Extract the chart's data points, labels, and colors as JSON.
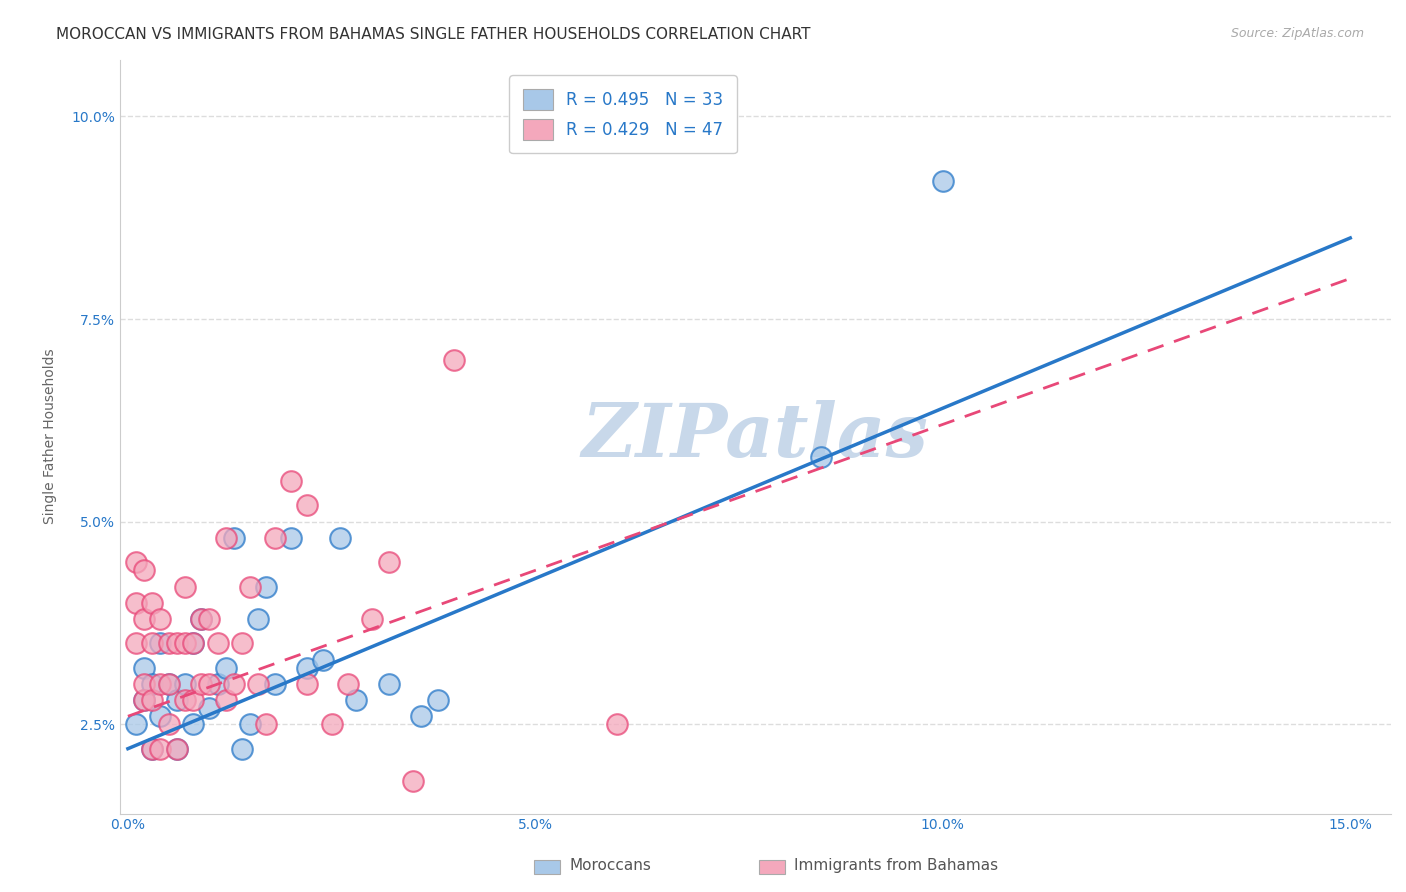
{
  "title": "MOROCCAN VS IMMIGRANTS FROM BAHAMAS SINGLE FATHER HOUSEHOLDS CORRELATION CHART",
  "source": "Source: ZipAtlas.com",
  "xlabel_ticks": [
    "0.0%",
    "5.0%",
    "10.0%",
    "15.0%"
  ],
  "xlabel_tick_vals": [
    0.0,
    0.05,
    0.1,
    0.15
  ],
  "ylabel_ticks": [
    "2.5%",
    "5.0%",
    "7.5%",
    "10.0%"
  ],
  "ylabel_tick_vals": [
    0.025,
    0.05,
    0.075,
    0.1
  ],
  "xlim": [
    -0.001,
    0.155
  ],
  "ylim": [
    0.014,
    0.107
  ],
  "ylabel": "Single Father Households",
  "legend_label1": "Moroccans",
  "legend_label2": "Immigrants from Bahamas",
  "r1": 0.495,
  "n1": 33,
  "r2": 0.429,
  "n2": 47,
  "color1": "#a8c8e8",
  "color2": "#f4a8bc",
  "line_color1": "#2878c8",
  "line_color2": "#e84878",
  "scatter1_x": [
    0.001,
    0.002,
    0.002,
    0.003,
    0.003,
    0.004,
    0.004,
    0.005,
    0.006,
    0.006,
    0.007,
    0.008,
    0.008,
    0.009,
    0.01,
    0.011,
    0.012,
    0.013,
    0.014,
    0.015,
    0.016,
    0.017,
    0.018,
    0.02,
    0.022,
    0.024,
    0.026,
    0.028,
    0.032,
    0.036,
    0.038,
    0.085,
    0.1
  ],
  "scatter1_y": [
    0.025,
    0.028,
    0.032,
    0.022,
    0.03,
    0.035,
    0.026,
    0.03,
    0.022,
    0.028,
    0.03,
    0.035,
    0.025,
    0.038,
    0.027,
    0.03,
    0.032,
    0.048,
    0.022,
    0.025,
    0.038,
    0.042,
    0.03,
    0.048,
    0.032,
    0.033,
    0.048,
    0.028,
    0.03,
    0.026,
    0.028,
    0.058,
    0.092
  ],
  "scatter2_x": [
    0.001,
    0.001,
    0.001,
    0.002,
    0.002,
    0.002,
    0.002,
    0.003,
    0.003,
    0.003,
    0.003,
    0.004,
    0.004,
    0.004,
    0.005,
    0.005,
    0.005,
    0.006,
    0.006,
    0.007,
    0.007,
    0.007,
    0.008,
    0.008,
    0.009,
    0.009,
    0.01,
    0.01,
    0.011,
    0.012,
    0.012,
    0.013,
    0.014,
    0.015,
    0.016,
    0.017,
    0.018,
    0.02,
    0.022,
    0.022,
    0.025,
    0.027,
    0.03,
    0.032,
    0.035,
    0.04,
    0.06
  ],
  "scatter2_y": [
    0.04,
    0.045,
    0.035,
    0.028,
    0.038,
    0.03,
    0.044,
    0.022,
    0.028,
    0.035,
    0.04,
    0.022,
    0.03,
    0.038,
    0.025,
    0.03,
    0.035,
    0.022,
    0.035,
    0.028,
    0.035,
    0.042,
    0.028,
    0.035,
    0.03,
    0.038,
    0.03,
    0.038,
    0.035,
    0.028,
    0.048,
    0.03,
    0.035,
    0.042,
    0.03,
    0.025,
    0.048,
    0.055,
    0.03,
    0.052,
    0.025,
    0.03,
    0.038,
    0.045,
    0.018,
    0.07,
    0.025
  ],
  "line1_x0": 0.0,
  "line1_y0": 0.022,
  "line1_x1": 0.15,
  "line1_y1": 0.085,
  "line2_x0": 0.0,
  "line2_y0": 0.026,
  "line2_x1": 0.15,
  "line2_y1": 0.08,
  "title_fontsize": 11,
  "source_fontsize": 9,
  "axis_label_fontsize": 10,
  "tick_fontsize": 10,
  "legend_fontsize": 12,
  "watermark": "ZIPatlas",
  "watermark_color": "#c8d8ea",
  "background_color": "#ffffff",
  "grid_color": "#dddddd"
}
